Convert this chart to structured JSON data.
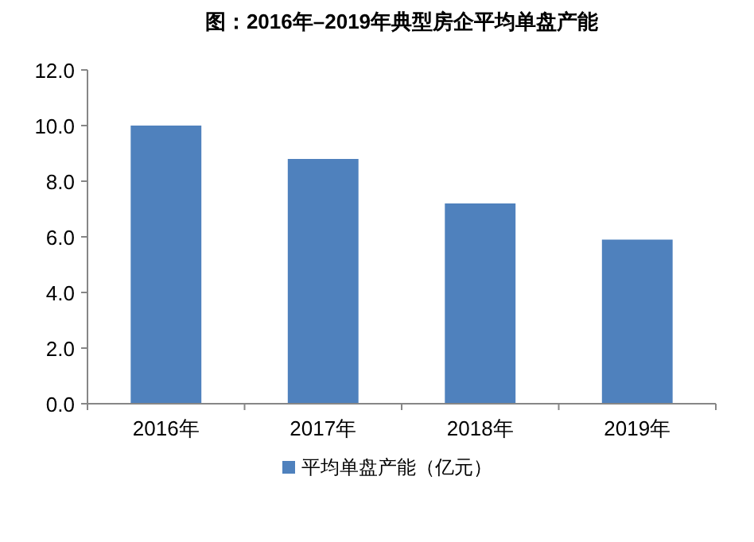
{
  "chart_data": {
    "type": "bar",
    "title": "图：2016年–2019年典型房企平均单盘产能",
    "categories": [
      "2016年",
      "2017年",
      "2018年",
      "2019年"
    ],
    "series": [
      {
        "name": "平均单盘产能（亿元）",
        "color": "#4f81bd",
        "values": [
          10.0,
          8.8,
          7.2,
          5.9
        ]
      }
    ],
    "ylim": [
      0,
      12
    ],
    "yticks": [
      {
        "value": 0,
        "label": "0.0"
      },
      {
        "value": 2,
        "label": "2.0"
      },
      {
        "value": 4,
        "label": "4.0"
      },
      {
        "value": 6,
        "label": "6.0"
      },
      {
        "value": 8,
        "label": "8.0"
      },
      {
        "value": 10,
        "label": "10.0"
      },
      {
        "value": 12,
        "label": "12.0"
      }
    ],
    "grid": false,
    "legend": "bottom"
  }
}
